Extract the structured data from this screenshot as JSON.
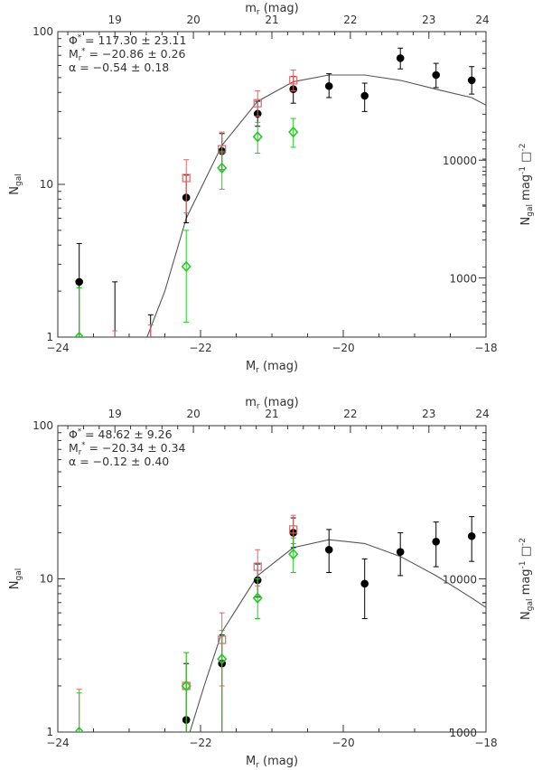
{
  "chart_data": [
    {
      "type": "scatter",
      "xlabel_bottom": "M",
      "xlabel_bottom_sub": "r",
      "xlabel_bottom_unit": " (mag)",
      "xlabel_top": "m",
      "xlabel_top_sub": "r",
      "xlabel_top_unit": " (mag)",
      "ylabel_left": "N",
      "ylabel_left_sub": "gal",
      "ylabel_right": "N",
      "ylabel_right_sub": "gal",
      "ylabel_right_rest": " mag",
      "ylabel_right_exp1": "-1",
      "ylabel_right_box": "□",
      "ylabel_right_exp2": "-2",
      "xlim": [
        -24,
        -18
      ],
      "ylim": [
        1,
        100
      ],
      "yscale": "log",
      "x_ticks": [
        "-24",
        "-22",
        "-20",
        "-18"
      ],
      "y_ticks": [
        "1",
        "10",
        "100"
      ],
      "top_ticks": [
        "19",
        "20",
        "21",
        "22",
        "23",
        "24"
      ],
      "top_tick_positions_M": [
        -23.2,
        -22.1,
        -21.0,
        -19.9,
        -18.8,
        -17.7
      ],
      "right_ticks": [
        "1000",
        "10000"
      ],
      "right_tick_values": [
        2.44,
        14.4
      ],
      "params": [
        {
          "prefix": "Φ",
          "sup": "*",
          "text": "= 117.30 ± 23.11"
        },
        {
          "prefix": "M",
          "sub": "r",
          "sup": "*",
          "text": "= −20.86 ± 0.26"
        },
        {
          "prefix": "α",
          "text": "= −0.54 ± 0.18"
        }
      ],
      "curve": [
        [
          -22.75,
          1
        ],
        [
          -22.5,
          2
        ],
        [
          -22.2,
          6
        ],
        [
          -21.7,
          18
        ],
        [
          -21.2,
          35
        ],
        [
          -20.7,
          47
        ],
        [
          -20.2,
          52
        ],
        [
          -19.7,
          52
        ],
        [
          -19.2,
          48
        ],
        [
          -18.7,
          42
        ],
        [
          -18.2,
          37
        ],
        [
          -18.0,
          33
        ]
      ],
      "series": [
        {
          "color": "#000000",
          "marker": "circle",
          "points": [
            {
              "x": -23.7,
              "y": 2.3,
              "lo": 1.0,
              "hi": 4.1
            },
            {
              "x": -22.2,
              "y": 8.2,
              "lo": 5.6,
              "hi": 11.5
            },
            {
              "x": -21.7,
              "y": 16.5,
              "lo": 12.5,
              "hi": 21.5
            },
            {
              "x": -21.2,
              "y": 29,
              "lo": 24,
              "hi": 35
            },
            {
              "x": -20.7,
              "y": 42,
              "lo": 34,
              "hi": 51
            },
            {
              "x": -20.2,
              "y": 44,
              "lo": 37,
              "hi": 53
            },
            {
              "x": -19.7,
              "y": 38,
              "lo": 30,
              "hi": 46
            },
            {
              "x": -19.2,
              "y": 67,
              "lo": 57,
              "hi": 78
            },
            {
              "x": -18.7,
              "y": 52,
              "lo": 43,
              "hi": 62
            },
            {
              "x": -18.2,
              "y": 48,
              "lo": 39,
              "hi": 59
            }
          ],
          "bars_only": [
            {
              "x": -23.2,
              "lo": 1.0,
              "hi": 2.3
            },
            {
              "x": -22.7,
              "lo": 1.0,
              "hi": 1.4
            }
          ]
        },
        {
          "color": "#e06666",
          "marker": "square",
          "points": [
            {
              "x": -22.2,
              "y": 11,
              "lo": 6.5,
              "hi": 14.5
            },
            {
              "x": -21.7,
              "y": 17,
              "lo": 12.5,
              "hi": 22
            },
            {
              "x": -21.2,
              "y": 34,
              "lo": 28,
              "hi": 41
            },
            {
              "x": -20.7,
              "y": 48,
              "lo": 41,
              "hi": 56
            }
          ],
          "bars_only": [
            {
              "x": -23.2,
              "lo": 1.0,
              "hi": 1.1
            },
            {
              "x": -22.7,
              "lo": 1.0,
              "hi": 1.2
            }
          ]
        },
        {
          "color": "#22cc22",
          "marker": "diamond",
          "points": [
            {
              "x": -23.7,
              "y": 1.0,
              "lo": 1.0,
              "hi": 2.1
            },
            {
              "x": -22.2,
              "y": 2.9,
              "lo": 1.25,
              "hi": 5.0
            },
            {
              "x": -21.7,
              "y": 12.8,
              "lo": 9.3,
              "hi": 16.5
            },
            {
              "x": -21.2,
              "y": 20.5,
              "lo": 16,
              "hi": 25.5
            },
            {
              "x": -20.7,
              "y": 22,
              "lo": 17.5,
              "hi": 27
            }
          ],
          "bars_only": []
        }
      ]
    },
    {
      "type": "scatter",
      "xlabel_bottom": "M",
      "xlabel_bottom_sub": "r",
      "xlabel_bottom_unit": " (mag)",
      "xlabel_top": "m",
      "xlabel_top_sub": "r",
      "xlabel_top_unit": " (mag)",
      "ylabel_left": "N",
      "ylabel_left_sub": "gal",
      "ylabel_right": "N",
      "ylabel_right_sub": "gal",
      "ylabel_right_rest": " mag",
      "ylabel_right_exp1": "-1",
      "ylabel_right_box": "□",
      "ylabel_right_exp2": "-2",
      "xlim": [
        -24,
        -18
      ],
      "ylim": [
        1,
        100
      ],
      "yscale": "log",
      "x_ticks": [
        "-24",
        "-22",
        "-20",
        "-18"
      ],
      "y_ticks": [
        "1",
        "10",
        "100"
      ],
      "top_ticks": [
        "19",
        "20",
        "21",
        "22",
        "23",
        "24"
      ],
      "top_tick_positions_M": [
        -23.2,
        -22.1,
        -21.0,
        -19.9,
        -18.8,
        -17.7
      ],
      "right_ticks": [
        "1000",
        "10000"
      ],
      "right_tick_values": [
        1.0,
        10.0
      ],
      "params": [
        {
          "prefix": "Φ",
          "sup": "*",
          "text": "= 48.62 ± 9.26"
        },
        {
          "prefix": "M",
          "sub": "r",
          "sup": "*",
          "text": "= −20.34 ± 0.34"
        },
        {
          "prefix": "α",
          "text": "= −0.12 ± 0.40"
        }
      ],
      "curve": [
        [
          -22.15,
          1
        ],
        [
          -21.95,
          2
        ],
        [
          -21.7,
          4.5
        ],
        [
          -21.2,
          10.5
        ],
        [
          -20.7,
          16
        ],
        [
          -20.2,
          18
        ],
        [
          -19.7,
          17
        ],
        [
          -19.2,
          14
        ],
        [
          -18.7,
          10.5
        ],
        [
          -18.2,
          7.5
        ],
        [
          -18.0,
          6.5
        ]
      ],
      "series": [
        {
          "color": "#000000",
          "marker": "circle",
          "points": [
            {
              "x": -22.2,
              "y": 1.2,
              "lo": 1.0,
              "hi": 2.8
            },
            {
              "x": -21.7,
              "y": 2.8,
              "lo": 1.0,
              "hi": 4.3
            },
            {
              "x": -21.2,
              "y": 9.8,
              "lo": 7.6,
              "hi": 12.5
            },
            {
              "x": -20.7,
              "y": 20,
              "lo": 16,
              "hi": 25
            },
            {
              "x": -20.2,
              "y": 15.5,
              "lo": 11,
              "hi": 21
            },
            {
              "x": -19.7,
              "y": 9.3,
              "lo": 5.5,
              "hi": 13.5
            },
            {
              "x": -19.2,
              "y": 15,
              "lo": 10.5,
              "hi": 20
            },
            {
              "x": -18.7,
              "y": 17.5,
              "lo": 12,
              "hi": 23.5
            },
            {
              "x": -18.2,
              "y": 19,
              "lo": 13,
              "hi": 25.5
            }
          ],
          "bars_only": []
        },
        {
          "color": "#e06666",
          "marker": "square",
          "points": [
            {
              "x": -22.2,
              "y": 2.0,
              "lo": 1.0,
              "hi": 3.3
            },
            {
              "x": -21.7,
              "y": 4.0,
              "lo": 2.0,
              "hi": 6.0
            },
            {
              "x": -21.2,
              "y": 12,
              "lo": 9,
              "hi": 15.5
            },
            {
              "x": -20.7,
              "y": 21,
              "lo": 17,
              "hi": 26
            }
          ],
          "bars_only": [
            {
              "x": -23.7,
              "lo": 1.0,
              "hi": 1.9
            }
          ]
        },
        {
          "color": "#22cc22",
          "marker": "diamond",
          "points": [
            {
              "x": -23.7,
              "y": 1.0,
              "lo": 1.0,
              "hi": 1.8
            },
            {
              "x": -22.2,
              "y": 2.0,
              "lo": 1.0,
              "hi": 3.3
            },
            {
              "x": -21.7,
              "y": 3.0,
              "lo": 1.0,
              "hi": 4.6
            },
            {
              "x": -21.2,
              "y": 7.5,
              "lo": 5.5,
              "hi": 10
            },
            {
              "x": -20.7,
              "y": 14.5,
              "lo": 11,
              "hi": 18.5
            }
          ],
          "bars_only": []
        }
      ]
    }
  ]
}
